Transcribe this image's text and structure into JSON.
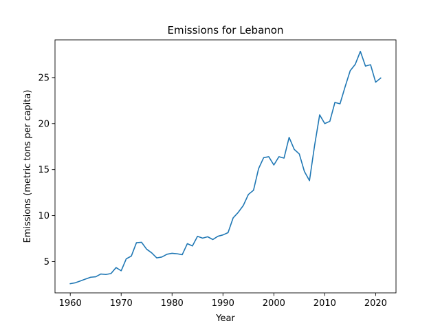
{
  "chart_data": {
    "type": "line",
    "title": "Emissions for Lebanon",
    "xlabel": "Year",
    "ylabel": "Emissions (metric tons per capita)",
    "xlim": [
      1957,
      2024
    ],
    "ylim": [
      1.6,
      29.1
    ],
    "xticks": [
      1960,
      1970,
      1980,
      1990,
      2000,
      2010,
      2020
    ],
    "yticks": [
      5,
      10,
      15,
      20,
      25
    ],
    "grid": false,
    "legend": "none",
    "line_color": "#1f77b4",
    "series": [
      {
        "x": [
          1960,
          1961,
          1962,
          1963,
          1964,
          1965,
          1966,
          1967,
          1968,
          1969,
          1970,
          1971,
          1972,
          1973,
          1974,
          1975,
          1976,
          1977,
          1978,
          1979,
          1980,
          1981,
          1982,
          1983,
          1984,
          1985,
          1986,
          1987,
          1988,
          1989,
          1990,
          1991,
          1992,
          1993,
          1994,
          1995,
          1996,
          1997,
          1998,
          1999,
          2000,
          2001,
          2002,
          2003,
          2004,
          2005,
          2006,
          2007,
          2008,
          2009,
          2010,
          2011,
          2012,
          2013,
          2014,
          2015,
          2016,
          2017,
          2018,
          2019,
          2020,
          2021
        ],
        "values": [
          2.6,
          2.7,
          2.9,
          3.1,
          3.3,
          3.35,
          3.65,
          3.6,
          3.7,
          4.35,
          4.0,
          5.3,
          5.6,
          7.05,
          7.1,
          6.35,
          5.95,
          5.4,
          5.5,
          5.8,
          5.9,
          5.85,
          5.75,
          6.95,
          6.7,
          7.75,
          7.55,
          7.7,
          7.4,
          7.75,
          7.9,
          8.15,
          9.75,
          10.35,
          11.1,
          12.3,
          12.75,
          15.1,
          16.3,
          16.4,
          15.5,
          16.4,
          16.25,
          18.5,
          17.2,
          16.7,
          14.8,
          13.8,
          17.6,
          20.95,
          20.0,
          20.25,
          22.3,
          22.15,
          24.0,
          25.75,
          26.45,
          27.85,
          26.25,
          26.4,
          24.5,
          24.95
        ]
      }
    ]
  }
}
